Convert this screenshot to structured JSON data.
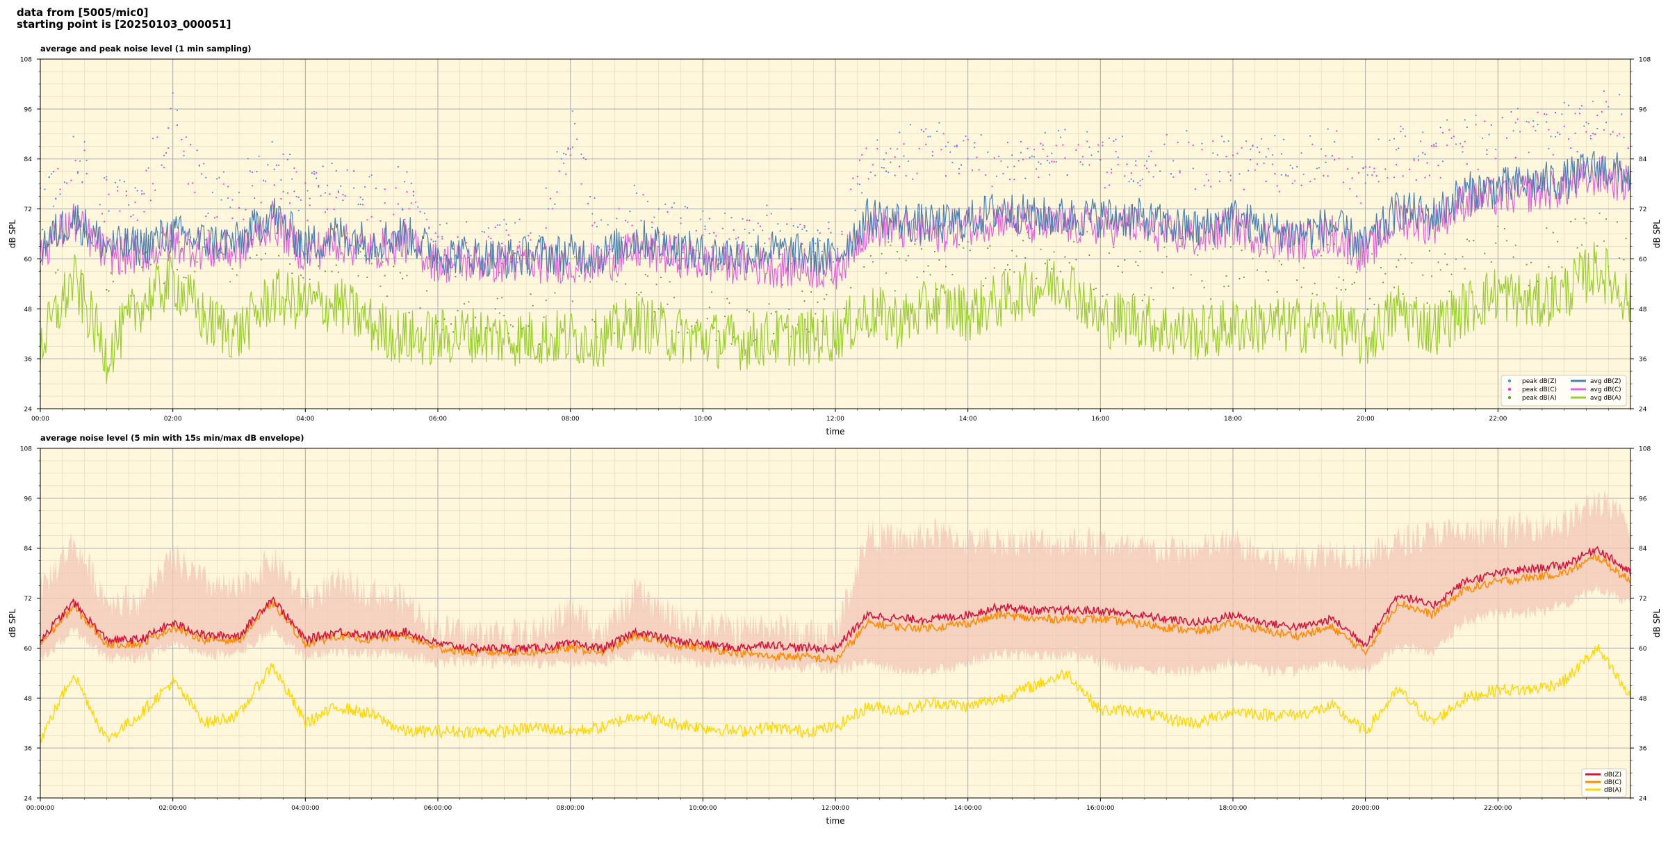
{
  "header": {
    "line1": "data from [5005/mic0]",
    "line2": "starting point is [20250103_000051]"
  },
  "colors": {
    "background": "#fff7dc",
    "zPeak": "#4a90e2",
    "cPeak": "#ff33cc",
    "aPeak": "#6a9a3a",
    "zAvg": "#4a7fae",
    "cAvg": "#e066d9",
    "aAvg": "#9acd32",
    "z5min": "#d4143c",
    "c5min": "#ff8c00",
    "a5min": "#ffd700",
    "envelope": "#f3c7b8"
  },
  "chart_data": [
    {
      "type": "line",
      "title": "average and peak noise level (1 min sampling)",
      "xlabel": "time",
      "ylabel": "dB SPL",
      "ylim": [
        24,
        108
      ],
      "xlim": [
        0,
        24
      ],
      "y_ticks": [
        24,
        36,
        48,
        60,
        72,
        84,
        96,
        108
      ],
      "x_ticks": [
        "00:00",
        "02:00",
        "04:00",
        "06:00",
        "08:00",
        "10:00",
        "12:00",
        "14:00",
        "16:00",
        "18:00",
        "20:00",
        "22:00"
      ],
      "grid": true,
      "legend_position": "bottom-right",
      "legend": [
        "peak dB(Z)",
        "peak dB(C)",
        "peak dB(A)",
        "avg dB(Z)",
        "avg dB(C)",
        "avg dB(A)"
      ],
      "x": [
        0,
        0.5,
        1,
        1.5,
        2,
        2.5,
        3,
        3.5,
        4,
        4.5,
        5,
        5.5,
        6,
        6.5,
        7,
        7.5,
        8,
        8.5,
        9,
        9.5,
        10,
        10.5,
        11,
        11.5,
        12,
        12.5,
        13,
        13.5,
        14,
        14.5,
        15,
        15.5,
        16,
        16.5,
        17,
        17.5,
        18,
        18.5,
        19,
        19.5,
        20,
        20.5,
        21,
        21.5,
        22,
        22.5,
        23,
        23.5,
        24
      ],
      "series": [
        {
          "name": "avg dB(Z)",
          "values": [
            63,
            70,
            63,
            63,
            66,
            64,
            64,
            71,
            63,
            66,
            64,
            66,
            61,
            61,
            60,
            61,
            61,
            61,
            65,
            63,
            61,
            61,
            62,
            61,
            60,
            70,
            69,
            68,
            69,
            72,
            70,
            70,
            70,
            70,
            68,
            67,
            70,
            67,
            66,
            68,
            63,
            72,
            70,
            76,
            77,
            78,
            79,
            82,
            80
          ]
        },
        {
          "name": "avg dB(C)",
          "values": [
            62,
            69,
            61,
            61,
            64,
            62,
            62,
            69,
            61,
            64,
            62,
            64,
            59,
            59,
            59,
            59,
            59,
            59,
            62,
            61,
            59,
            59,
            58,
            58,
            57,
            68,
            67,
            66,
            68,
            70,
            68,
            68,
            68,
            68,
            66,
            65,
            68,
            65,
            64,
            66,
            61,
            70,
            68,
            74,
            75,
            76,
            77,
            80,
            78
          ]
        },
        {
          "name": "avg dB(A)",
          "values": [
            39,
            55,
            37,
            49,
            55,
            45,
            42,
            51,
            49,
            49,
            44,
            41,
            41,
            42,
            41,
            41,
            41,
            41,
            45,
            42,
            41,
            40,
            41,
            41,
            42,
            47,
            45,
            49,
            47,
            50,
            53,
            55,
            45,
            46,
            43,
            42,
            44,
            44,
            44,
            45,
            40,
            48,
            43,
            48,
            52,
            49,
            52,
            58,
            50
          ]
        },
        {
          "name": "peak dB(Z)",
          "values": [
            73,
            86,
            76,
            76,
            94,
            76,
            76,
            84,
            76,
            79,
            76,
            77,
            64,
            63,
            64,
            64,
            92,
            64,
            76,
            68,
            66,
            65,
            67,
            66,
            65,
            86,
            86,
            88,
            86,
            85,
            84,
            86,
            85,
            84,
            86,
            84,
            85,
            84,
            84,
            88,
            80,
            88,
            86,
            89,
            90,
            91,
            92,
            96,
            93
          ]
        },
        {
          "name": "peak dB(C)",
          "values": [
            71,
            84,
            74,
            74,
            92,
            74,
            74,
            82,
            74,
            77,
            74,
            75,
            62,
            61,
            62,
            62,
            90,
            62,
            74,
            66,
            64,
            63,
            65,
            64,
            63,
            84,
            84,
            86,
            84,
            83,
            82,
            84,
            83,
            82,
            84,
            82,
            83,
            82,
            82,
            86,
            78,
            86,
            84,
            87,
            88,
            89,
            90,
            94,
            91
          ]
        },
        {
          "name": "peak dB(A)",
          "values": [
            60,
            62,
            58,
            58,
            62,
            60,
            58,
            64,
            58,
            60,
            58,
            52,
            44,
            43,
            44,
            45,
            56,
            46,
            52,
            48,
            46,
            46,
            48,
            48,
            48,
            56,
            58,
            56,
            58,
            60,
            62,
            64,
            58,
            56,
            58,
            56,
            58,
            58,
            56,
            60,
            54,
            58,
            56,
            60,
            62,
            60,
            62,
            66,
            60
          ]
        }
      ]
    },
    {
      "type": "line",
      "title": "average noise level (5 min with 15s min/max dB envelope)",
      "xlabel": "time",
      "ylabel": "dB SPL",
      "ylim": [
        24,
        108
      ],
      "xlim": [
        0,
        24
      ],
      "y_ticks": [
        24,
        36,
        48,
        60,
        72,
        84,
        96,
        108
      ],
      "x_ticks": [
        "00:00:00",
        "02:00:00",
        "04:00:00",
        "06:00:00",
        "08:00:00",
        "10:00:00",
        "12:00:00",
        "14:00:00",
        "16:00:00",
        "18:00:00",
        "20:00:00",
        "22:00:00"
      ],
      "grid": true,
      "legend_position": "bottom-right",
      "legend": [
        "dB(Z)",
        "dB(C)",
        "dB(A)"
      ],
      "x": [
        0,
        0.5,
        1,
        1.5,
        2,
        2.5,
        3,
        3.5,
        4,
        4.5,
        5,
        5.5,
        6,
        6.5,
        7,
        7.5,
        8,
        8.5,
        9,
        9.5,
        10,
        10.5,
        11,
        11.5,
        12,
        12.5,
        13,
        13.5,
        14,
        14.5,
        15,
        15.5,
        16,
        16.5,
        17,
        17.5,
        18,
        18.5,
        19,
        19.5,
        20,
        20.5,
        21,
        21.5,
        22,
        22.5,
        23,
        23.5,
        24
      ],
      "series": [
        {
          "name": "dB(Z)",
          "values": [
            62,
            71,
            62,
            62,
            66,
            63,
            63,
            72,
            62,
            64,
            63,
            64,
            61,
            60,
            60,
            60,
            61,
            60,
            64,
            62,
            61,
            60,
            61,
            60,
            60,
            68,
            67,
            67,
            68,
            70,
            69,
            69,
            69,
            68,
            67,
            66,
            68,
            66,
            65,
            67,
            61,
            73,
            70,
            76,
            78,
            79,
            80,
            84,
            78
          ]
        },
        {
          "name": "dB(C)",
          "values": [
            61,
            70,
            61,
            61,
            65,
            62,
            62,
            71,
            61,
            63,
            62,
            63,
            60,
            59,
            59,
            59,
            60,
            59,
            63,
            61,
            60,
            59,
            58,
            58,
            57,
            66,
            65,
            65,
            66,
            68,
            67,
            67,
            67,
            66,
            65,
            64,
            66,
            64,
            63,
            65,
            59,
            71,
            68,
            74,
            76,
            77,
            78,
            82,
            76
          ]
        },
        {
          "name": "dB(A)",
          "values": [
            38,
            54,
            38,
            44,
            52,
            42,
            44,
            56,
            42,
            46,
            44,
            40,
            40,
            40,
            40,
            41,
            40,
            41,
            44,
            42,
            41,
            40,
            41,
            40,
            41,
            46,
            45,
            47,
            46,
            48,
            51,
            54,
            45,
            45,
            43,
            42,
            45,
            44,
            44,
            46,
            40,
            50,
            42,
            48,
            50,
            50,
            52,
            60,
            48
          ]
        },
        {
          "name": "envelope max",
          "values": [
            72,
            84,
            70,
            70,
            80,
            74,
            72,
            80,
            70,
            74,
            72,
            70,
            63,
            62,
            62,
            62,
            68,
            62,
            72,
            66,
            64,
            63,
            64,
            62,
            62,
            86,
            84,
            86,
            84,
            84,
            84,
            84,
            84,
            82,
            82,
            82,
            84,
            80,
            80,
            82,
            80,
            84,
            86,
            86,
            86,
            88,
            88,
            94,
            88
          ]
        },
        {
          "name": "envelope min",
          "values": [
            59,
            66,
            59,
            59,
            62,
            60,
            60,
            66,
            59,
            61,
            60,
            60,
            58,
            58,
            58,
            58,
            58,
            58,
            60,
            59,
            58,
            58,
            57,
            57,
            56,
            58,
            56,
            56,
            58,
            60,
            60,
            60,
            58,
            56,
            56,
            56,
            58,
            56,
            56,
            58,
            56,
            62,
            60,
            68,
            70,
            70,
            72,
            76,
            72
          ]
        }
      ]
    }
  ]
}
